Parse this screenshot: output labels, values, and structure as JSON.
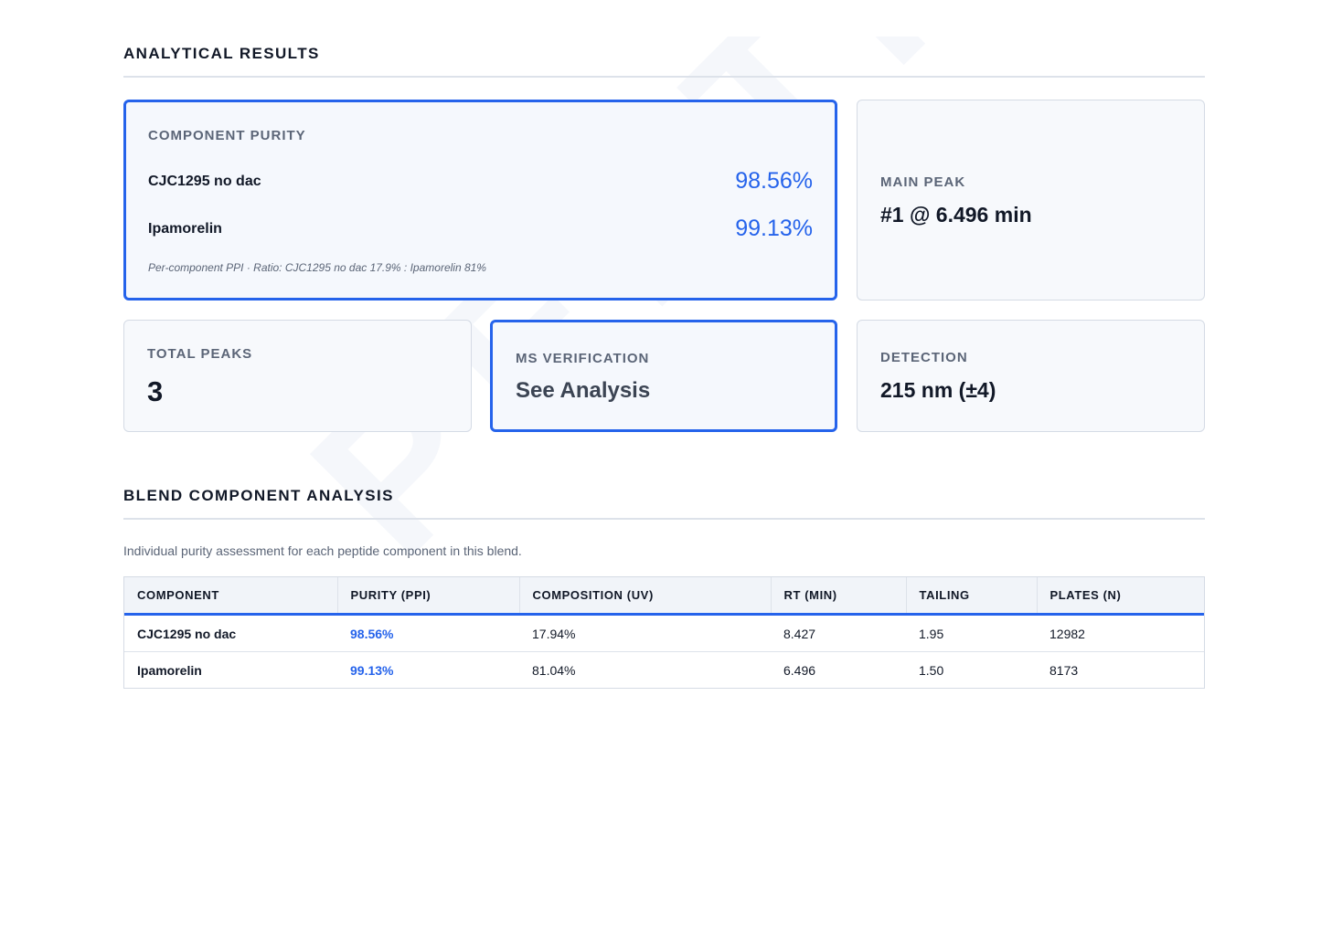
{
  "watermark": "PEPTIDE VERIFY",
  "section_titles": {
    "analytical_results": "ANALYTICAL RESULTS",
    "blend_analysis": "BLEND COMPONENT ANALYSIS"
  },
  "purity_card": {
    "label": "COMPONENT PURITY",
    "rows": [
      {
        "name": "CJC1295 no dac",
        "value": "98.56%"
      },
      {
        "name": "Ipamorelin",
        "value": "99.13%"
      }
    ],
    "note": "Per-component PPI · Ratio: CJC1295 no dac 17.9% : Ipamorelin 81%"
  },
  "main_peak": {
    "label": "MAIN PEAK",
    "value": "#1 @ 6.496 min"
  },
  "total_peaks": {
    "label": "TOTAL PEAKS",
    "value": "3"
  },
  "ms_verification": {
    "label": "MS VERIFICATION",
    "value": "See Analysis"
  },
  "detection": {
    "label": "DETECTION",
    "value": "215 nm (±4)"
  },
  "blend_subtitle": "Individual purity assessment for each peptide component in this blend.",
  "table": {
    "headers": [
      "COMPONENT",
      "PURITY (PPI)",
      "COMPOSITION (UV)",
      "RT (MIN)",
      "TAILING",
      "PLATES (N)"
    ],
    "rows": [
      [
        "CJC1295 no dac",
        "98.56%",
        "17.94%",
        "8.427",
        "1.95",
        "12982"
      ],
      [
        "Ipamorelin",
        "99.13%",
        "81.04%",
        "6.496",
        "1.50",
        "8173"
      ]
    ]
  },
  "colors": {
    "accent": "#2563eb",
    "muted_text": "#5b6577",
    "card_bg": "#f7f9fc",
    "border": "#d5dbe5"
  }
}
